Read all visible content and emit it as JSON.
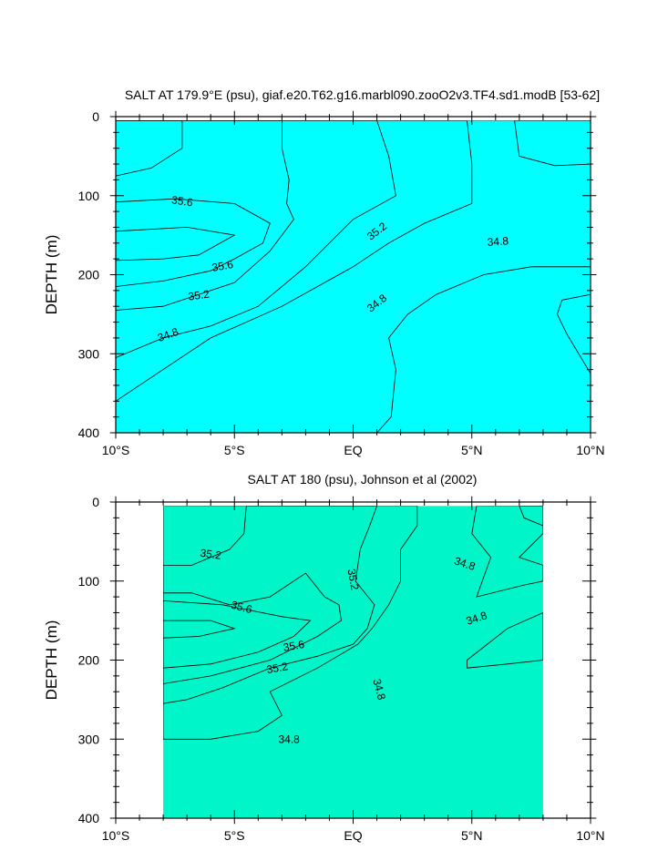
{
  "palette": {
    "c34_6": "#00ffff",
    "c34_8": "#00f5c8",
    "c35_0": "#00e686",
    "c35_2": "#00e600",
    "c35_4": "#96fa00",
    "c35_6": "#ffff00",
    "c35_8": "#ffd232",
    "c34_4": "#3ce6fa"
  },
  "chart_data": [
    {
      "type": "contour",
      "title": "SALT AT 179.9°E (psu), giaf.e20.T62.g16.marbl090.zooO2v3.TF4.sd1.modB [53-62]",
      "ylabel": "DEPTH (m)",
      "xlabel": "",
      "xlim": [
        -10,
        10
      ],
      "ylim": [
        400,
        0
      ],
      "x_ticks": [
        -10,
        -5,
        0,
        5,
        10
      ],
      "x_tick_labels": [
        "10°S",
        "5°S",
        "EQ",
        "5°N",
        "10°N"
      ],
      "y_ticks": [
        0,
        100,
        200,
        300,
        400
      ],
      "y_tick_labels": [
        "0",
        "100",
        "200",
        "300",
        "400"
      ],
      "data_extent_x": [
        -10,
        10
      ],
      "data_extent_y": [
        5,
        400
      ],
      "base_level": 34.6,
      "regions": [
        {
          "level": 34.8,
          "points": [
            [
              -10,
              5
            ],
            [
              10,
              5
            ],
            [
              10,
              400
            ],
            [
              -10,
              400
            ]
          ]
        },
        {
          "level": 35.0,
          "points": [
            [
              -10,
              5
            ],
            [
              4.8,
              5
            ],
            [
              5.0,
              60
            ],
            [
              5.0,
              110
            ],
            [
              3.0,
              135
            ],
            [
              1.5,
              160
            ],
            [
              0,
              190
            ],
            [
              -3,
              240
            ],
            [
              -6,
              280
            ],
            [
              -8,
              320
            ],
            [
              -10,
              360
            ]
          ]
        },
        {
          "level": 35.2,
          "points": [
            [
              -10,
              5
            ],
            [
              1.0,
              5
            ],
            [
              1.5,
              50
            ],
            [
              1.8,
              100
            ],
            [
              0,
              130
            ],
            [
              -2,
              190
            ],
            [
              -4,
              240
            ],
            [
              -6,
              265
            ],
            [
              -8,
              280
            ],
            [
              -10,
              305
            ]
          ]
        },
        {
          "level": 35.4,
          "points": [
            [
              -10,
              5
            ],
            [
              -3.0,
              5
            ],
            [
              -3,
              40
            ],
            [
              -2.7,
              80
            ],
            [
              -2.8,
              110
            ],
            [
              -2.5,
              130
            ],
            [
              -3.5,
              170
            ],
            [
              -5,
              210
            ],
            [
              -8,
              240
            ],
            [
              -10,
              245
            ]
          ]
        },
        {
          "level": 35.4,
          "points": [
            [
              -10,
              5
            ],
            [
              -7.2,
              5
            ],
            [
              -7.2,
              40
            ],
            [
              -8.5,
              65
            ],
            [
              -10,
              75
            ]
          ]
        },
        {
          "level": 35.6,
          "points": [
            [
              -10,
              108
            ],
            [
              -7.5,
              104
            ],
            [
              -5,
              110
            ],
            [
              -3.5,
              135
            ],
            [
              -3.8,
              160
            ],
            [
              -5,
              180
            ],
            [
              -6,
              195
            ],
            [
              -8,
              208
            ],
            [
              -10,
              215
            ]
          ]
        },
        {
          "level": 35.8,
          "points": [
            [
              -10,
              145
            ],
            [
              -7,
              140
            ],
            [
              -5,
              150
            ],
            [
              -6.5,
              175
            ],
            [
              -8,
              180
            ],
            [
              -10,
              182
            ]
          ]
        },
        {
          "level": 34.6,
          "points": [
            [
              1.0,
              400
            ],
            [
              1.6,
              380
            ],
            [
              1.8,
              320
            ],
            [
              1.5,
              280
            ],
            [
              2.3,
              250
            ],
            [
              3.5,
              225
            ],
            [
              5.5,
              200
            ],
            [
              7.5,
              190
            ],
            [
              10,
              190
            ],
            [
              10,
              400
            ]
          ]
        },
        {
          "level": 34.6,
          "points": [
            [
              6.8,
              5
            ],
            [
              10,
              5
            ],
            [
              10,
              60
            ],
            [
              8.5,
              62
            ],
            [
              7.0,
              50
            ]
          ]
        },
        {
          "level": 34.4,
          "points": [
            [
              10,
              225
            ],
            [
              8.8,
              232
            ],
            [
              8.6,
              250
            ],
            [
              9,
              275
            ],
            [
              10,
              325
            ]
          ]
        }
      ],
      "labels": [
        {
          "text": "35.6",
          "x": -7.2,
          "y": 107,
          "angle": 8
        },
        {
          "text": "35.2",
          "x": 1.0,
          "y": 145,
          "angle": -38
        },
        {
          "text": "34.8",
          "x": 6.1,
          "y": 158,
          "angle": -4
        },
        {
          "text": "35.6",
          "x": -5.5,
          "y": 189,
          "angle": -10
        },
        {
          "text": "35.2",
          "x": -6.5,
          "y": 226,
          "angle": -8
        },
        {
          "text": "34.8",
          "x": 1.0,
          "y": 236,
          "angle": -38
        },
        {
          "text": "34.8",
          "x": -7.8,
          "y": 276,
          "angle": -20
        }
      ]
    },
    {
      "type": "contour",
      "title": "SALT AT 180 (psu), Johnson et al (2002)",
      "ylabel": "DEPTH (m)",
      "xlabel": "",
      "xlim": [
        -10,
        10
      ],
      "ylim": [
        400,
        0
      ],
      "x_ticks": [
        -10,
        -5,
        0,
        5,
        10
      ],
      "x_tick_labels": [
        "10°S",
        "5°S",
        "EQ",
        "5°N",
        "10°N"
      ],
      "y_ticks": [
        0,
        100,
        200,
        300,
        400
      ],
      "y_tick_labels": [
        "0",
        "100",
        "200",
        "300",
        "400"
      ],
      "data_extent_x": [
        -8,
        8
      ],
      "data_extent_y": [
        5,
        400
      ],
      "base_level": 34.8,
      "regions": [
        {
          "level": 35.0,
          "points": [
            [
              -8,
              5
            ],
            [
              2.7,
              5
            ],
            [
              2.7,
              30
            ],
            [
              2.0,
              60
            ],
            [
              2.0,
              100
            ],
            [
              1.5,
              130
            ],
            [
              0.8,
              160
            ],
            [
              0.2,
              180
            ],
            [
              -1.5,
              210
            ],
            [
              -3.5,
              240
            ],
            [
              -3.0,
              270
            ],
            [
              -4.0,
              290
            ],
            [
              -6.0,
              300
            ],
            [
              -8,
              300
            ]
          ]
        },
        {
          "level": 35.2,
          "points": [
            [
              -4.5,
              5
            ],
            [
              1.0,
              5
            ],
            [
              0.7,
              30
            ],
            [
              0.3,
              60
            ],
            [
              0.1,
              100
            ],
            [
              0.9,
              130
            ],
            [
              0.6,
              160
            ],
            [
              0,
              180
            ],
            [
              -1.5,
              195
            ],
            [
              -3.5,
              210
            ],
            [
              -5.5,
              235
            ],
            [
              -7.0,
              250
            ],
            [
              -8,
              255
            ],
            [
              -8,
              80
            ],
            [
              -6.8,
              80
            ],
            [
              -5.2,
              60
            ],
            [
              -4.6,
              40
            ]
          ]
        },
        {
          "level": 35.4,
          "points": [
            [
              -8,
              115
            ],
            [
              -6.8,
              115
            ],
            [
              -5.2,
              130
            ],
            [
              -3.5,
              120
            ],
            [
              -2.0,
              90
            ],
            [
              -1.2,
              120
            ],
            [
              -0.6,
              130
            ],
            [
              -0.5,
              150
            ],
            [
              -1.5,
              170
            ],
            [
              -3.5,
              200
            ],
            [
              -6.0,
              220
            ],
            [
              -8,
              230
            ]
          ]
        },
        {
          "level": 35.6,
          "points": [
            [
              -8,
              125
            ],
            [
              -5.5,
              130
            ],
            [
              -3.0,
              145
            ],
            [
              -1.8,
              150
            ],
            [
              -2.5,
              170
            ],
            [
              -4.0,
              190
            ],
            [
              -6.0,
              205
            ],
            [
              -8,
              210
            ]
          ]
        },
        {
          "level": 35.8,
          "points": [
            [
              -8,
              150
            ],
            [
              -6.0,
              150
            ],
            [
              -5,
              160
            ],
            [
              -6.5,
              170
            ],
            [
              -8,
              172
            ]
          ]
        },
        {
          "level": 34.6,
          "points": [
            [
              5.2,
              5
            ],
            [
              8,
              5
            ],
            [
              8,
              40
            ],
            [
              7.0,
              70
            ],
            [
              8,
              80
            ],
            [
              8,
              100
            ],
            [
              7.2,
              105
            ],
            [
              5.2,
              120
            ],
            [
              5.8,
              70
            ],
            [
              5.0,
              40
            ]
          ]
        },
        {
          "level": 34.6,
          "points": [
            [
              4.8,
              210
            ],
            [
              6.5,
              205
            ],
            [
              8,
              200
            ],
            [
              8,
              140
            ],
            [
              6.5,
              160
            ],
            [
              4.8,
              200
            ]
          ]
        },
        {
          "level": 34.6,
          "points": [
            [
              7.0,
              5
            ],
            [
              8,
              5
            ],
            [
              8,
              30
            ],
            [
              7.2,
              20
            ]
          ]
        }
      ],
      "labels": [
        {
          "text": "35.2",
          "x": -6.0,
          "y": 66,
          "angle": 8
        },
        {
          "text": "35.2",
          "x": 0,
          "y": 98,
          "angle": 80
        },
        {
          "text": "34.8",
          "x": 4.7,
          "y": 78,
          "angle": 18
        },
        {
          "text": "35.6",
          "x": -4.7,
          "y": 133,
          "angle": 15
        },
        {
          "text": "34.8",
          "x": 5.2,
          "y": 147,
          "angle": -18
        },
        {
          "text": "35.6",
          "x": -2.5,
          "y": 182,
          "angle": -10
        },
        {
          "text": "35.2",
          "x": -3.2,
          "y": 210,
          "angle": -10
        },
        {
          "text": "34.8",
          "x": 1.1,
          "y": 237,
          "angle": 75
        },
        {
          "text": "34.8",
          "x": -2.7,
          "y": 300,
          "angle": 0
        }
      ]
    }
  ]
}
